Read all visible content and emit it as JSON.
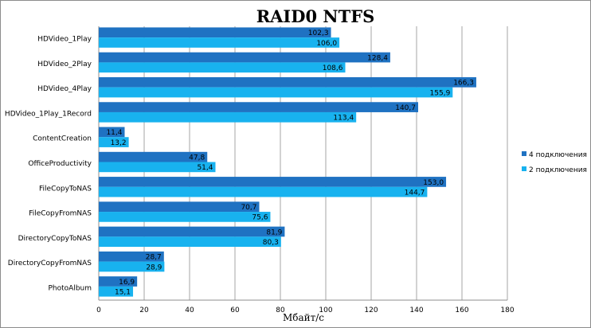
{
  "chart_data": {
    "type": "bar",
    "orientation": "horizontal",
    "title": "RAID0 NTFS",
    "xlabel": "Мбайт/с",
    "ylabel": "",
    "xlim": [
      0,
      180
    ],
    "x_ticks": [
      0,
      20,
      40,
      60,
      80,
      100,
      120,
      140,
      160,
      180
    ],
    "grid": true,
    "legend_position": "right",
    "categories": [
      "HDVideo_1Play",
      "HDVideo_2Play",
      "HDVideo_4Play",
      "HDVideo_1Play_1Record",
      "ContentCreation",
      "OfficeProductivity",
      "FileCopyToNAS",
      "FileCopyFromNAS",
      "DirectoryCopyToNAS",
      "DirectoryCopyFromNAS",
      "PhotoAlbum"
    ],
    "series": [
      {
        "name": "4 подключения",
        "color": "#1f72c2",
        "values": [
          102.3,
          128.4,
          166.3,
          140.7,
          11.4,
          47.8,
          153.0,
          70.7,
          81.9,
          28.7,
          16.9
        ],
        "labels": [
          "102,3",
          "128,4",
          "166,3",
          "140,7",
          "11,4",
          "47,8",
          "153,0",
          "70,7",
          "81,9",
          "28,7",
          "16,9"
        ]
      },
      {
        "name": "2 подключения",
        "color": "#18b2ef",
        "values": [
          106.0,
          108.6,
          155.9,
          113.4,
          13.2,
          51.4,
          144.7,
          75.6,
          80.3,
          28.9,
          15.1
        ],
        "labels": [
          "106,0",
          "108,6",
          "155,9",
          "113,4",
          "13,2",
          "51,4",
          "144,7",
          "75,6",
          "80,3",
          "28,9",
          "15,1"
        ]
      }
    ]
  }
}
